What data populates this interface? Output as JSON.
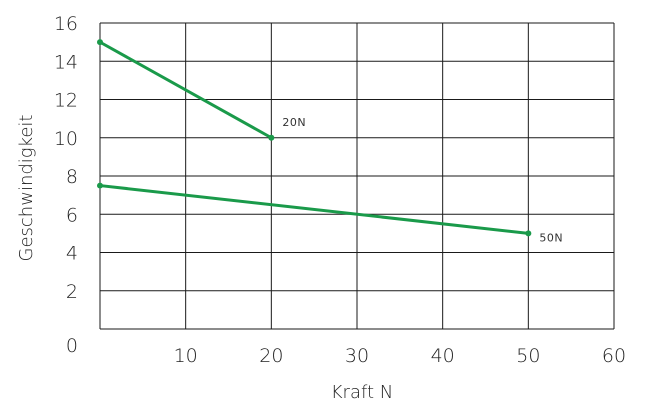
{
  "chart_data": {
    "type": "line",
    "xlabel": "Kraft N",
    "ylabel": "Geschwindigkeit",
    "xlim": [
      0,
      60
    ],
    "ylim": [
      0,
      16
    ],
    "x_ticks": [
      "10",
      "20",
      "30",
      "40",
      "50",
      "60"
    ],
    "y_ticks": [
      "0",
      "2",
      "4",
      "6",
      "8",
      "10",
      "12",
      "14",
      "16"
    ],
    "grid": true,
    "line_color": "#1a9a4a",
    "series": [
      {
        "points": [
          [
            0,
            15
          ],
          [
            20,
            10
          ]
        ],
        "annotation": "20N"
      },
      {
        "points": [
          [
            0,
            7.5
          ],
          [
            50,
            5
          ]
        ],
        "annotation": "50N"
      }
    ]
  }
}
